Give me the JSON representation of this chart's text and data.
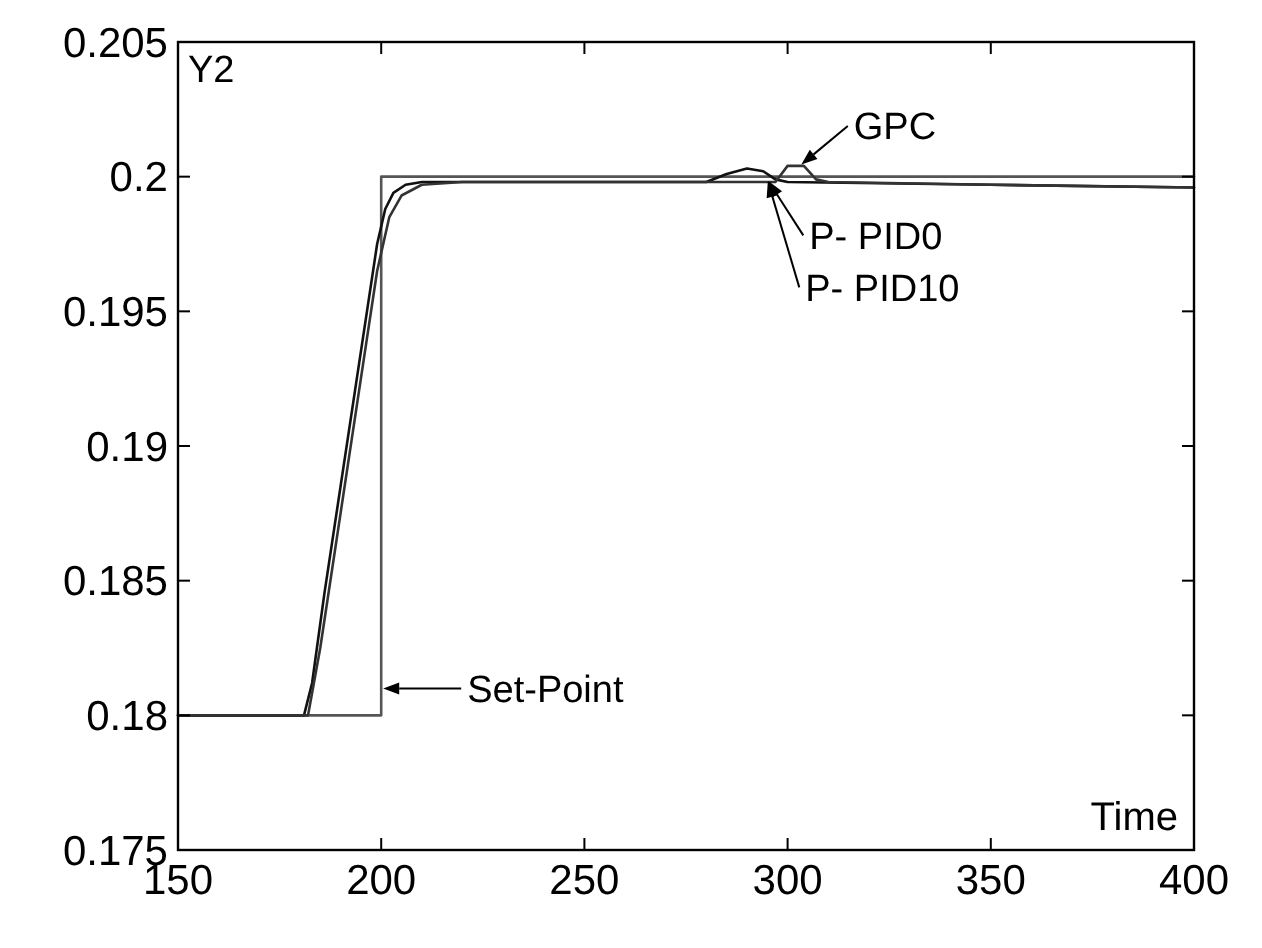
{
  "chart_data": {
    "type": "line",
    "xlabel": "Time",
    "ylabel": "Y2",
    "xlim": [
      150,
      400
    ],
    "ylim": [
      0.175,
      0.205
    ],
    "xticks": [
      150,
      200,
      250,
      300,
      350,
      400
    ],
    "yticks": [
      0.175,
      0.18,
      0.185,
      0.19,
      0.195,
      0.2,
      0.205
    ],
    "grid": false,
    "marker": "none",
    "line_style": "solid",
    "series": [
      {
        "color": "#555555",
        "x": [
          150,
          200,
          200,
          400
        ],
        "values": [
          0.18,
          0.18,
          0.2,
          0.2
        ]
      },
      {
        "color": "#111111",
        "x": [
          150,
          181,
          183,
          186,
          190,
          194,
          197,
          199,
          201,
          203,
          206,
          210,
          220,
          280,
          285,
          290,
          294,
          297,
          300,
          350,
          400
        ],
        "values": [
          0.18,
          0.18,
          0.1812,
          0.1845,
          0.1885,
          0.1925,
          0.1955,
          0.1975,
          0.1988,
          0.1994,
          0.1997,
          0.1998,
          0.1998,
          0.1998,
          0.2001,
          0.2003,
          0.2002,
          0.1999,
          0.1998,
          0.1997,
          0.1996
        ]
      },
      {
        "color": "#333333",
        "x": [
          150,
          182,
          185,
          190,
          195,
          199,
          202,
          205,
          210,
          220,
          297,
          300,
          304,
          307,
          310,
          350,
          400
        ],
        "values": [
          0.18,
          0.18,
          0.1825,
          0.1875,
          0.1925,
          0.1965,
          0.1985,
          0.1993,
          0.1997,
          0.1998,
          0.1998,
          0.2004,
          0.2004,
          0.1999,
          0.1998,
          0.1997,
          0.1996
        ]
      }
    ],
    "annotations": [
      {
        "text": "GPC",
        "x": 303,
        "y": 0.2004
      },
      {
        "text": "P- PID0",
        "x": 295,
        "y": 0.1999
      },
      {
        "text": "P- PID10",
        "x": 295,
        "y": 0.1999
      },
      {
        "text": "Set-Point",
        "x": 200,
        "y": 0.181
      }
    ]
  }
}
